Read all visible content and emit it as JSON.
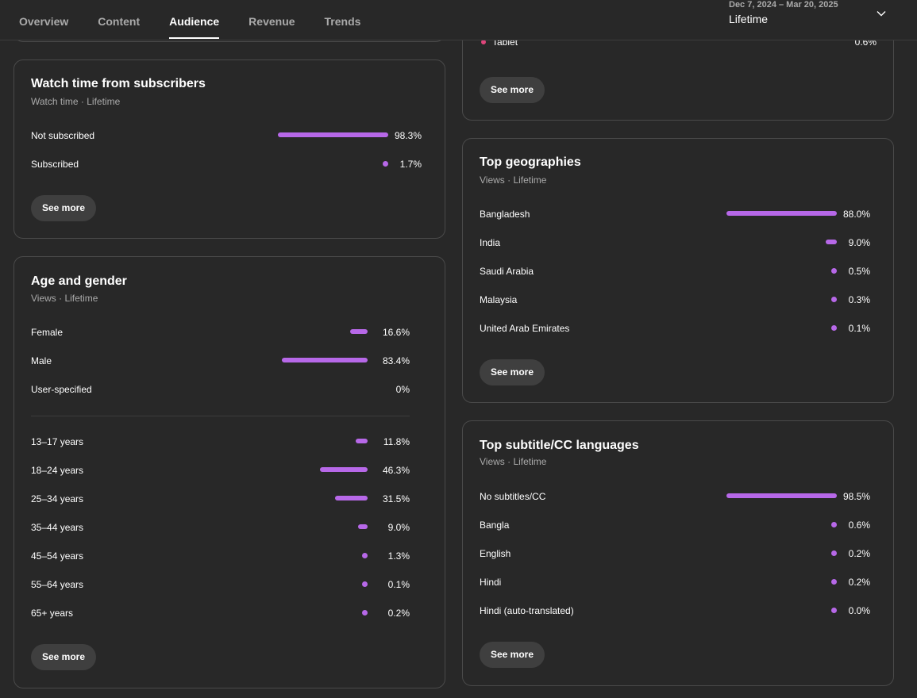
{
  "nav": {
    "tabs": [
      "Overview",
      "Content",
      "Audience",
      "Revenue",
      "Trends"
    ],
    "active_tab": "Audience",
    "date_range": "Dec 7, 2024 – Mar 20, 2025",
    "period": "Lifetime"
  },
  "device_card_partial": {
    "row_label": "Tablet",
    "row_value": "0.6%",
    "see_more": "See more"
  },
  "subscribers": {
    "title": "Watch time from subscribers",
    "subtitle": "Watch time · Lifetime",
    "rows": [
      {
        "label": "Not subscribed",
        "value": "98.3%",
        "fraction": 0.983
      },
      {
        "label": "Subscribed",
        "value": "1.7%",
        "fraction": 0.017
      }
    ],
    "see_more": "See more"
  },
  "age_gender": {
    "title": "Age and gender",
    "subtitle": "Views · Lifetime",
    "gender_rows": [
      {
        "label": "Female",
        "value": "16.6%",
        "fraction": 0.166
      },
      {
        "label": "Male",
        "value": "83.4%",
        "fraction": 0.834
      },
      {
        "label": "User-specified",
        "value": "0%",
        "fraction": 0
      }
    ],
    "age_rows": [
      {
        "label": "13–17 years",
        "value": "11.8%",
        "fraction": 0.118
      },
      {
        "label": "18–24 years",
        "value": "46.3%",
        "fraction": 0.463
      },
      {
        "label": "25–34 years",
        "value": "31.5%",
        "fraction": 0.315
      },
      {
        "label": "35–44 years",
        "value": "9.0%",
        "fraction": 0.09
      },
      {
        "label": "45–54 years",
        "value": "1.3%",
        "fraction": 0.013
      },
      {
        "label": "55–64 years",
        "value": "0.1%",
        "fraction": 0.001
      },
      {
        "label": "65+ years",
        "value": "0.2%",
        "fraction": 0.002
      }
    ],
    "see_more": "See more"
  },
  "geographies": {
    "title": "Top geographies",
    "subtitle": "Views · Lifetime",
    "rows": [
      {
        "label": "Bangladesh",
        "value": "88.0%",
        "fraction": 0.88
      },
      {
        "label": "India",
        "value": "9.0%",
        "fraction": 0.09
      },
      {
        "label": "Saudi Arabia",
        "value": "0.5%",
        "fraction": 0.005
      },
      {
        "label": "Malaysia",
        "value": "0.3%",
        "fraction": 0.003
      },
      {
        "label": "United Arab Emirates",
        "value": "0.1%",
        "fraction": 0.001
      }
    ],
    "see_more": "See more"
  },
  "subtitles": {
    "title": "Top subtitle/CC languages",
    "subtitle": "Views · Lifetime",
    "rows": [
      {
        "label": "No subtitles/CC",
        "value": "98.5%",
        "fraction": 0.985
      },
      {
        "label": "Bangla",
        "value": "0.6%",
        "fraction": 0.006
      },
      {
        "label": "English",
        "value": "0.2%",
        "fraction": 0.002
      },
      {
        "label": "Hindi",
        "value": "0.2%",
        "fraction": 0.002
      },
      {
        "label": "Hindi (auto-translated)",
        "value": "0.0%",
        "fraction": 0
      }
    ],
    "see_more": "See more"
  },
  "colors": {
    "bar": "#b768e8",
    "tablet_dot": "#e0457b",
    "background": "#282828"
  }
}
